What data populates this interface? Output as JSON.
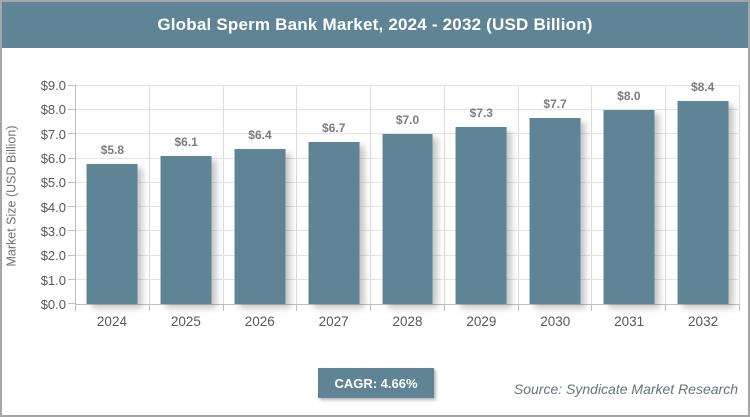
{
  "header": {
    "title": "Global Sperm Bank Market, 2024 - 2032 (USD Billion)"
  },
  "footer": {
    "cagr_label": "CAGR: 4.66%",
    "source": "Source: Syndicate Market Research"
  },
  "colors": {
    "accent": "#5F8495",
    "horizontal_grid": "#E4E4E4",
    "vertical_grid": "#DCDCDC",
    "axis": "#BFBFBF",
    "tick_text": "#595959",
    "bar_label_text": "#7C7C7C",
    "source_text": "#64747E",
    "border": "#A6A6A6",
    "title_text": "#FFFFFF"
  },
  "chart_data": {
    "type": "bar",
    "title": "Global Sperm Bank Market, 2024 - 2032 (USD Billion)",
    "categories": [
      "2024",
      "2025",
      "2026",
      "2027",
      "2028",
      "2029",
      "2030",
      "2031",
      "2032"
    ],
    "values": [
      5.8,
      6.1,
      6.4,
      6.7,
      7.0,
      7.3,
      7.7,
      8.0,
      8.4
    ],
    "value_labels": [
      "$5.8",
      "$6.1",
      "$6.4",
      "$6.7",
      "$7.0",
      "$7.3",
      "$7.7",
      "$8.0",
      "$8.4"
    ],
    "xlabel": "",
    "ylabel": "Market Size (USD Billion)",
    "ylim": [
      0,
      9
    ],
    "y_tick_step": 1,
    "y_ticks": [
      "$0.0",
      "$1.0",
      "$2.0",
      "$3.0",
      "$4.0",
      "$5.0",
      "$6.0",
      "$7.0",
      "$8.0",
      "$9.0"
    ],
    "grid": true,
    "legend": false,
    "cagr": "4.66%"
  }
}
